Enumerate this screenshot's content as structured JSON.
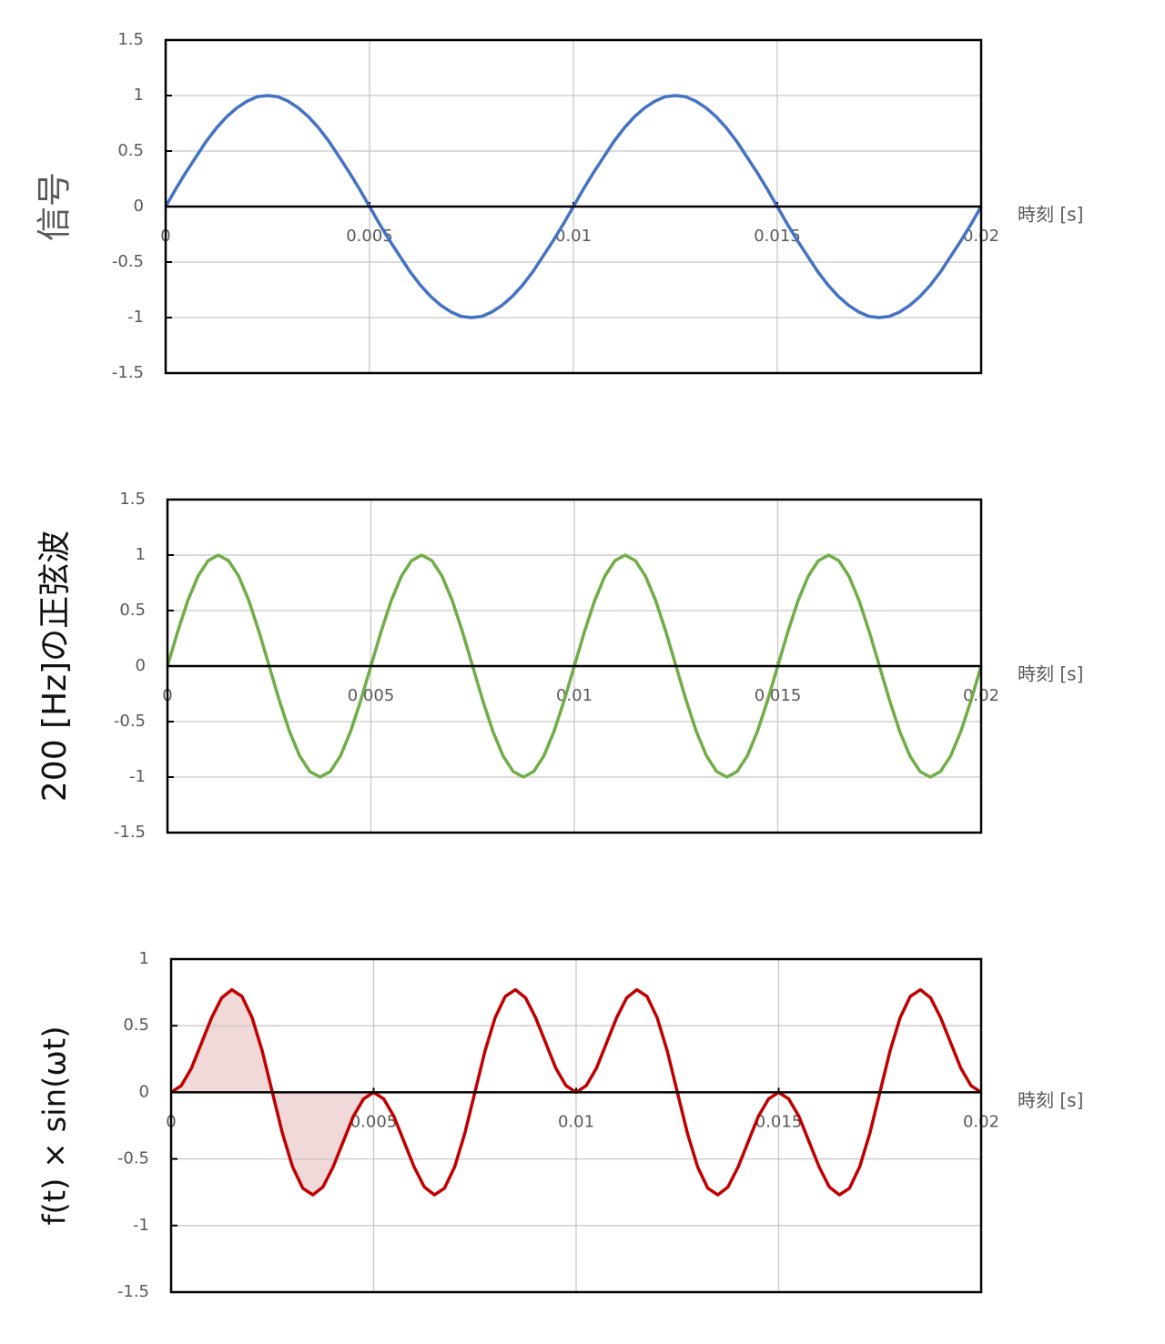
{
  "chart_data": [
    {
      "type": "line",
      "ylabel": "信号",
      "xlabel": "時刻 [s]",
      "color": "#4472c4",
      "grid": true,
      "xlim": [
        0,
        0.02
      ],
      "ylim": [
        -1.5,
        1.5
      ],
      "xticks": [
        0,
        0.005,
        0.01,
        0.015,
        0.02
      ],
      "yticks": [
        -1.5,
        -1,
        -0.5,
        0,
        0.5,
        1,
        1.5
      ],
      "x": [
        0,
        0.00025,
        0.0005,
        0.00075,
        0.001,
        0.00125,
        0.0015,
        0.00175,
        0.002,
        0.00225,
        0.0025,
        0.00275,
        0.003,
        0.00325,
        0.0035,
        0.00375,
        0.004,
        0.00425,
        0.0045,
        0.00475,
        0.005,
        0.00525,
        0.0055,
        0.00575,
        0.006,
        0.00625,
        0.0065,
        0.00675,
        0.007,
        0.00725,
        0.0075,
        0.00775,
        0.008,
        0.00825,
        0.0085,
        0.00875,
        0.009,
        0.00925,
        0.0095,
        0.00975,
        0.01,
        0.01025,
        0.0105,
        0.01075,
        0.011,
        0.01125,
        0.0115,
        0.01175,
        0.012,
        0.01225,
        0.0125,
        0.01275,
        0.013,
        0.01325,
        0.0135,
        0.01375,
        0.014,
        0.01425,
        0.0145,
        0.01475,
        0.015,
        0.01525,
        0.0155,
        0.01575,
        0.016,
        0.01625,
        0.0165,
        0.01675,
        0.017,
        0.01725,
        0.0175,
        0.01775,
        0.018,
        0.01825,
        0.0185,
        0.01875,
        0.019,
        0.01925,
        0.0195,
        0.01975,
        0.02
      ],
      "values": [
        0,
        0.16,
        0.31,
        0.45,
        0.59,
        0.71,
        0.81,
        0.89,
        0.95,
        0.99,
        1,
        0.99,
        0.95,
        0.89,
        0.81,
        0.71,
        0.59,
        0.45,
        0.31,
        0.16,
        0,
        -0.16,
        -0.31,
        -0.45,
        -0.59,
        -0.71,
        -0.81,
        -0.89,
        -0.95,
        -0.99,
        -1,
        -0.99,
        -0.95,
        -0.89,
        -0.81,
        -0.71,
        -0.59,
        -0.45,
        -0.31,
        -0.16,
        0,
        0.16,
        0.31,
        0.45,
        0.59,
        0.71,
        0.81,
        0.89,
        0.95,
        0.99,
        1,
        0.99,
        0.95,
        0.89,
        0.81,
        0.71,
        0.59,
        0.45,
        0.31,
        0.16,
        0,
        -0.16,
        -0.31,
        -0.45,
        -0.59,
        -0.71,
        -0.81,
        -0.89,
        -0.95,
        -0.99,
        -1,
        -0.99,
        -0.95,
        -0.89,
        -0.81,
        -0.71,
        -0.59,
        -0.45,
        -0.31,
        -0.16,
        0
      ]
    },
    {
      "type": "line",
      "ylabel": "200 [Hz]の正弦波",
      "xlabel": "時刻 [s]",
      "color": "#70ad47",
      "grid": true,
      "xlim": [
        0,
        0.02
      ],
      "ylim": [
        -1.5,
        1.5
      ],
      "xticks": [
        0,
        0.005,
        0.01,
        0.015,
        0.02
      ],
      "yticks": [
        -1.5,
        -1,
        -0.5,
        0,
        0.5,
        1,
        1.5
      ],
      "x": [
        0,
        0.00025,
        0.0005,
        0.00075,
        0.001,
        0.00125,
        0.0015,
        0.00175,
        0.002,
        0.00225,
        0.0025,
        0.00275,
        0.003,
        0.00325,
        0.0035,
        0.00375,
        0.004,
        0.00425,
        0.0045,
        0.00475,
        0.005,
        0.00525,
        0.0055,
        0.00575,
        0.006,
        0.00625,
        0.0065,
        0.00675,
        0.007,
        0.00725,
        0.0075,
        0.00775,
        0.008,
        0.00825,
        0.0085,
        0.00875,
        0.009,
        0.00925,
        0.0095,
        0.00975,
        0.01,
        0.01025,
        0.0105,
        0.01075,
        0.011,
        0.01125,
        0.0115,
        0.01175,
        0.012,
        0.01225,
        0.0125,
        0.01275,
        0.013,
        0.01325,
        0.0135,
        0.01375,
        0.014,
        0.01425,
        0.0145,
        0.01475,
        0.015,
        0.01525,
        0.0155,
        0.01575,
        0.016,
        0.01625,
        0.0165,
        0.01675,
        0.017,
        0.01725,
        0.0175,
        0.01775,
        0.018,
        0.01825,
        0.0185,
        0.01875,
        0.019,
        0.01925,
        0.0195,
        0.01975,
        0.02
      ],
      "values": [
        0,
        0.31,
        0.59,
        0.81,
        0.95,
        1,
        0.95,
        0.81,
        0.59,
        0.31,
        0,
        -0.31,
        -0.59,
        -0.81,
        -0.95,
        -1,
        -0.95,
        -0.81,
        -0.59,
        -0.31,
        0,
        0.31,
        0.59,
        0.81,
        0.95,
        1,
        0.95,
        0.81,
        0.59,
        0.31,
        0,
        -0.31,
        -0.59,
        -0.81,
        -0.95,
        -1,
        -0.95,
        -0.81,
        -0.59,
        -0.31,
        0,
        0.31,
        0.59,
        0.81,
        0.95,
        1,
        0.95,
        0.81,
        0.59,
        0.31,
        0,
        -0.31,
        -0.59,
        -0.81,
        -0.95,
        -1,
        -0.95,
        -0.81,
        -0.59,
        -0.31,
        0,
        0.31,
        0.59,
        0.81,
        0.95,
        1,
        0.95,
        0.81,
        0.59,
        0.31,
        0,
        -0.31,
        -0.59,
        -0.81,
        -0.95,
        -1,
        -0.95,
        -0.81,
        -0.59,
        -0.31,
        0
      ]
    },
    {
      "type": "line",
      "ylabel": "f(t) × sin(ωt)",
      "xlabel": "時刻 [s]",
      "color": "#c00000",
      "grid": true,
      "shade_xlim": [
        0,
        0.005
      ],
      "shade_color": "#f2d9d9",
      "xlim": [
        0,
        0.02
      ],
      "ylim": [
        -1.5,
        1
      ],
      "xticks": [
        0,
        0.005,
        0.01,
        0.015,
        0.02
      ],
      "yticks": [
        -1.5,
        -1,
        -0.5,
        0,
        0.5,
        1
      ],
      "x": [
        0,
        0.00025,
        0.0005,
        0.00075,
        0.001,
        0.00125,
        0.0015,
        0.00175,
        0.002,
        0.00225,
        0.0025,
        0.00275,
        0.003,
        0.00325,
        0.0035,
        0.00375,
        0.004,
        0.00425,
        0.0045,
        0.00475,
        0.005,
        0.00525,
        0.0055,
        0.00575,
        0.006,
        0.00625,
        0.0065,
        0.00675,
        0.007,
        0.00725,
        0.0075,
        0.00775,
        0.008,
        0.00825,
        0.0085,
        0.00875,
        0.009,
        0.00925,
        0.0095,
        0.00975,
        0.01,
        0.01025,
        0.0105,
        0.01075,
        0.011,
        0.01125,
        0.0115,
        0.01175,
        0.012,
        0.01225,
        0.0125,
        0.01275,
        0.013,
        0.01325,
        0.0135,
        0.01375,
        0.014,
        0.01425,
        0.0145,
        0.01475,
        0.015,
        0.01525,
        0.0155,
        0.01575,
        0.016,
        0.01625,
        0.0165,
        0.01675,
        0.017,
        0.01725,
        0.0175,
        0.01775,
        0.018,
        0.01825,
        0.0185,
        0.01875,
        0.019,
        0.01925,
        0.0195,
        0.01975,
        0.02
      ],
      "values": [
        0,
        0.05,
        0.18,
        0.37,
        0.56,
        0.71,
        0.77,
        0.72,
        0.56,
        0.31,
        0,
        -0.31,
        -0.56,
        -0.72,
        -0.77,
        -0.71,
        -0.56,
        -0.37,
        -0.18,
        -0.05,
        0,
        -0.05,
        -0.18,
        -0.37,
        -0.56,
        -0.71,
        -0.77,
        -0.72,
        -0.56,
        -0.31,
        0,
        0.31,
        0.56,
        0.72,
        0.77,
        0.71,
        0.56,
        0.37,
        0.18,
        0.05,
        0,
        0.05,
        0.18,
        0.37,
        0.56,
        0.71,
        0.77,
        0.72,
        0.56,
        0.31,
        0,
        -0.31,
        -0.56,
        -0.72,
        -0.77,
        -0.71,
        -0.56,
        -0.37,
        -0.18,
        -0.05,
        0,
        -0.05,
        -0.18,
        -0.37,
        -0.56,
        -0.71,
        -0.77,
        -0.72,
        -0.56,
        -0.31,
        0,
        0.31,
        0.56,
        0.72,
        0.77,
        0.71,
        0.56,
        0.37,
        0.18,
        0.05,
        0
      ]
    }
  ]
}
